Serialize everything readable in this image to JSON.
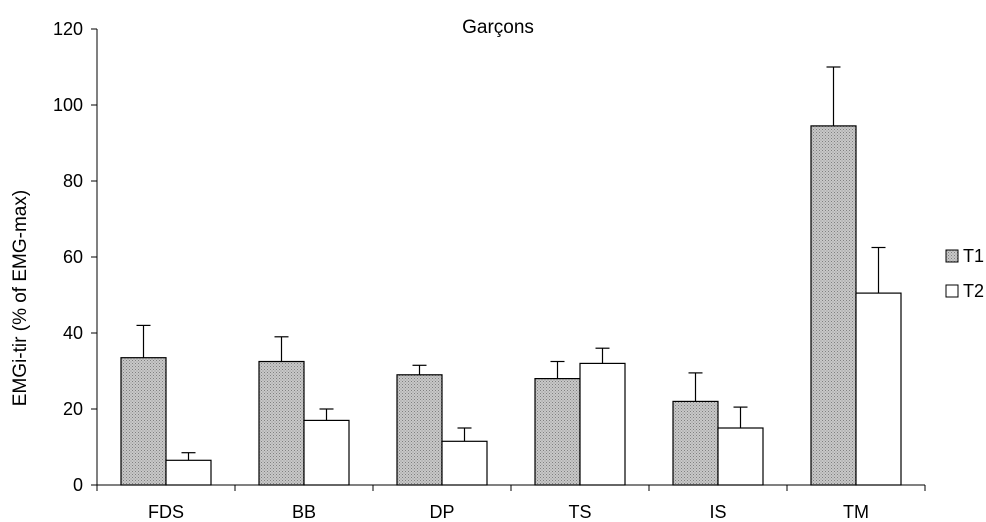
{
  "chart_data": {
    "type": "bar",
    "title": "Garçons",
    "xlabel": "",
    "ylabel": "EMGi-tir (% of EMG-max)",
    "ylim": [
      0,
      120
    ],
    "yticks": [
      0,
      20,
      40,
      60,
      80,
      100,
      120
    ],
    "categories": [
      "FDS",
      "BB",
      "DP",
      "TS",
      "IS",
      "TM"
    ],
    "series": [
      {
        "name": "T1",
        "fill": "#bdbdbd",
        "pattern": "dotted-gray",
        "values": [
          33.5,
          32.5,
          29.0,
          28.0,
          22.0,
          94.5
        ],
        "errors": [
          8.5,
          6.5,
          2.5,
          4.5,
          7.5,
          15.5
        ]
      },
      {
        "name": "T2",
        "fill": "#ffffff",
        "pattern": "none",
        "values": [
          6.5,
          17.0,
          11.5,
          32.0,
          15.0,
          50.5
        ],
        "errors": [
          2.0,
          3.0,
          3.5,
          4.0,
          5.5,
          12.0
        ]
      }
    ],
    "legend": "right",
    "grid": false
  }
}
